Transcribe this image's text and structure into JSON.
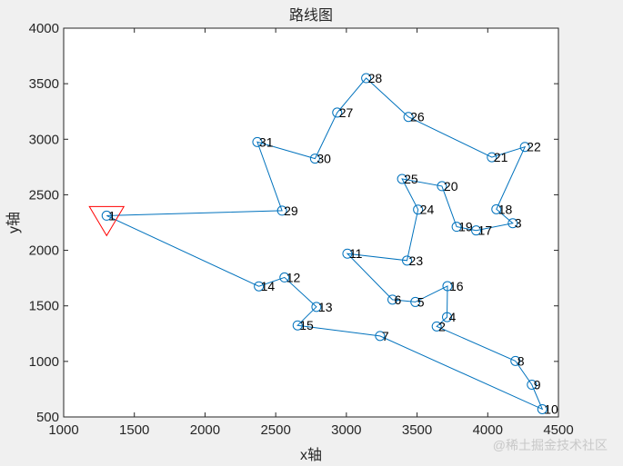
{
  "chart_data": {
    "type": "scatter",
    "title": "路线图",
    "xlabel": "x轴",
    "ylabel": "y轴",
    "xlim": [
      1000,
      4500
    ],
    "ylim": [
      500,
      4000
    ],
    "xticks": [
      1000,
      1500,
      2000,
      2500,
      3000,
      3500,
      4000,
      4500
    ],
    "yticks": [
      500,
      1000,
      1500,
      2000,
      2500,
      3000,
      3500,
      4000
    ],
    "grid": false,
    "route_color": "#0072bd",
    "start_marker_color": "#ff0000",
    "points": [
      {
        "id": "1",
        "x": 1304,
        "y": 2312
      },
      {
        "id": "2",
        "x": 3639,
        "y": 1315
      },
      {
        "id": "3",
        "x": 4177,
        "y": 2244
      },
      {
        "id": "4",
        "x": 3712,
        "y": 1399
      },
      {
        "id": "5",
        "x": 3488,
        "y": 1535
      },
      {
        "id": "6",
        "x": 3326,
        "y": 1556
      },
      {
        "id": "7",
        "x": 3238,
        "y": 1229
      },
      {
        "id": "8",
        "x": 4196,
        "y": 1004
      },
      {
        "id": "9",
        "x": 4312,
        "y": 790
      },
      {
        "id": "10",
        "x": 4386,
        "y": 570
      },
      {
        "id": "11",
        "x": 3007,
        "y": 1970
      },
      {
        "id": "12",
        "x": 2562,
        "y": 1756
      },
      {
        "id": "13",
        "x": 2788,
        "y": 1491
      },
      {
        "id": "14",
        "x": 2381,
        "y": 1676
      },
      {
        "id": "15",
        "x": 2655,
        "y": 1324
      },
      {
        "id": "16",
        "x": 3715,
        "y": 1678
      },
      {
        "id": "17",
        "x": 3918,
        "y": 2179
      },
      {
        "id": "18",
        "x": 4061,
        "y": 2370
      },
      {
        "id": "19",
        "x": 3780,
        "y": 2212
      },
      {
        "id": "20",
        "x": 3676,
        "y": 2578
      },
      {
        "id": "21",
        "x": 4029,
        "y": 2838
      },
      {
        "id": "22",
        "x": 4263,
        "y": 2931
      },
      {
        "id": "23",
        "x": 3429,
        "y": 1908
      },
      {
        "id": "24",
        "x": 3507,
        "y": 2367
      },
      {
        "id": "25",
        "x": 3394,
        "y": 2643
      },
      {
        "id": "26",
        "x": 3439,
        "y": 3201
      },
      {
        "id": "27",
        "x": 2935,
        "y": 3240
      },
      {
        "id": "28",
        "x": 3140,
        "y": 3550
      },
      {
        "id": "29",
        "x": 2545,
        "y": 2357
      },
      {
        "id": "30",
        "x": 2778,
        "y": 2826
      },
      {
        "id": "31",
        "x": 2370,
        "y": 2975
      }
    ],
    "route": [
      "1",
      "29",
      "31",
      "30",
      "27",
      "28",
      "26",
      "21",
      "22",
      "18",
      "3",
      "17",
      "19",
      "20",
      "25",
      "24",
      "23",
      "11",
      "6",
      "5",
      "16",
      "4",
      "2",
      "8",
      "9",
      "10",
      "7",
      "15",
      "13",
      "12",
      "14",
      "1"
    ],
    "start_point": "1"
  },
  "watermark": "@稀土掘金技术社区"
}
